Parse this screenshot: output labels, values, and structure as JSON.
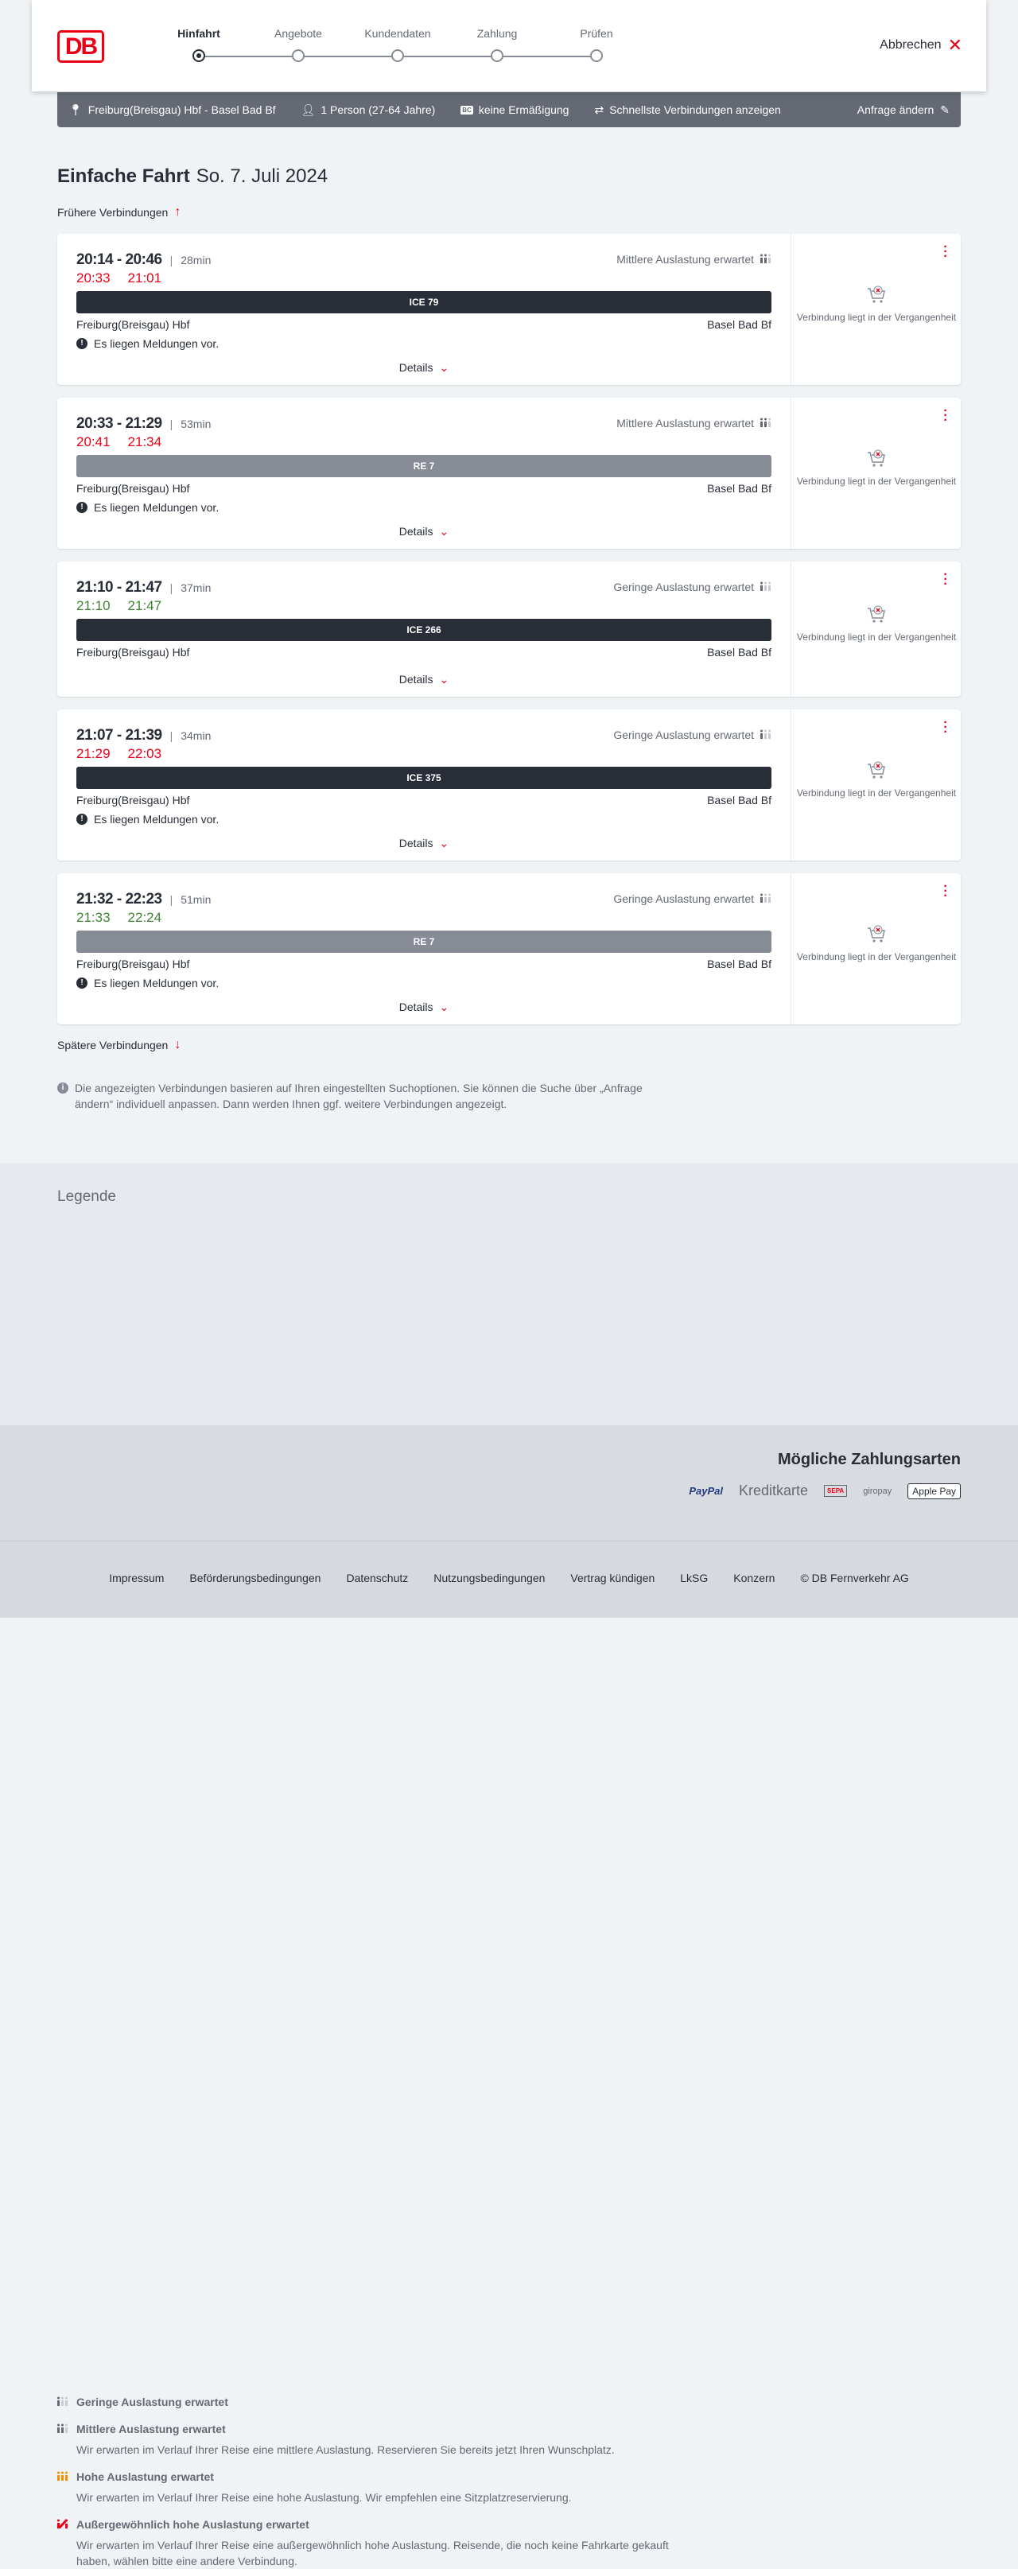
{
  "header": {
    "logo": "DB",
    "steps": [
      "Hinfahrt",
      "Angebote",
      "Kundendaten",
      "Zahlung",
      "Prüfen"
    ],
    "active_step": 0,
    "cancel": "Abbrechen"
  },
  "summary": {
    "route": "Freiburg(Breisgau) Hbf - Basel Bad Bf",
    "persons": "1 Person (27-64 Jahre)",
    "bc_badge": "BC",
    "discount": "keine Ermäßigung",
    "fastest": "Schnellste Verbindungen anzeigen",
    "change": "Anfrage ändern"
  },
  "page": {
    "title": "Einfache Fahrt",
    "date": "So. 7. Juli 2024",
    "earlier": "Frühere Verbindungen",
    "later": "Spätere Verbindungen",
    "info": "Die angezeigten Verbindungen basieren auf Ihren eingestellten Suchoptionen. Sie können die Suche über „Anfrage ändern“ individuell anpassen. Dann werden Ihnen ggf. weitere Verbindungen angezeigt."
  },
  "colors": {
    "delay": "#ec0016",
    "ontime": "#408335",
    "ice": "#282d37",
    "regional": "#878c96",
    "accent": "#ec0016"
  },
  "connections": [
    {
      "times": "20:14 - 20:46",
      "duration": "28min",
      "rt_dep": "20:33",
      "rt_arr": "21:01",
      "rt_status": "delay",
      "load": "Mittlere Auslastung erwartet",
      "load_level": 2,
      "train": "ICE 79",
      "train_type": "ice",
      "from": "Freiburg(Breisgau) Hbf",
      "to": "Basel Bad Bf",
      "message": "Es liegen Meldungen vor.",
      "details": "Details",
      "status": "Verbindung liegt in der Vergangenheit"
    },
    {
      "times": "20:33 - 21:29",
      "duration": "53min",
      "rt_dep": "20:41",
      "rt_arr": "21:34",
      "rt_status": "delay",
      "load": "Mittlere Auslastung erwartet",
      "load_level": 2,
      "train": "RE 7",
      "train_type": "regional",
      "from": "Freiburg(Breisgau) Hbf",
      "to": "Basel Bad Bf",
      "message": "Es liegen Meldungen vor.",
      "details": "Details",
      "status": "Verbindung liegt in der Vergangenheit"
    },
    {
      "times": "21:10 - 21:47",
      "duration": "37min",
      "rt_dep": "21:10",
      "rt_arr": "21:47",
      "rt_status": "ontime",
      "load": "Geringe Auslastung erwartet",
      "load_level": 1,
      "train": "ICE 266",
      "train_type": "ice",
      "from": "Freiburg(Breisgau) Hbf",
      "to": "Basel Bad Bf",
      "message": null,
      "details": "Details",
      "status": "Verbindung liegt in der Vergangenheit"
    },
    {
      "times": "21:07 - 21:39",
      "duration": "34min",
      "rt_dep": "21:29",
      "rt_arr": "22:03",
      "rt_status": "delay",
      "load": "Geringe Auslastung erwartet",
      "load_level": 1,
      "train": "ICE 375",
      "train_type": "ice",
      "from": "Freiburg(Breisgau) Hbf",
      "to": "Basel Bad Bf",
      "message": "Es liegen Meldungen vor.",
      "details": "Details",
      "status": "Verbindung liegt in der Vergangenheit"
    },
    {
      "times": "21:32 - 22:23",
      "duration": "51min",
      "rt_dep": "21:33",
      "rt_arr": "22:24",
      "rt_status": "ontime",
      "load": "Geringe Auslastung erwartet",
      "load_level": 1,
      "train": "RE 7",
      "train_type": "regional",
      "from": "Freiburg(Breisgau) Hbf",
      "to": "Basel Bad Bf",
      "message": "Es liegen Meldungen vor.",
      "details": "Details",
      "status": "Verbindung liegt in der Vergangenheit"
    }
  ],
  "legend": {
    "title": "Legende",
    "items": [
      {
        "title": "Geringe Auslastung erwartet",
        "text": "",
        "color": "#646973",
        "level": 1
      },
      {
        "title": "Mittlere Auslastung erwartet",
        "text": "Wir erwarten im Verlauf Ihrer Reise eine mittlere Auslastung. Reservieren Sie bereits jetzt Ihren Wunschplatz.",
        "color": "#646973",
        "level": 2
      },
      {
        "title": "Hohe Auslastung erwartet",
        "text": "Wir erwarten im Verlauf Ihrer Reise eine hohe Auslastung. Wir empfehlen eine Sitzplatzreservierung.",
        "color": "#f39200",
        "level": 3
      },
      {
        "title": "Außergewöhnlich hohe Auslastung erwartet",
        "text": "Wir erwarten im Verlauf Ihrer Reise eine außergewöhnlich hohe Auslastung. Reisende, die noch keine Fahrkarte gekauft haben, wählen bitte eine andere Verbindung.",
        "color": "#ec0016",
        "level": 4
      }
    ]
  },
  "payment": {
    "title": "Mögliche Zahlungsarten",
    "methods": [
      "PayPal",
      "Kreditkarte",
      "SEPA",
      "giropay",
      "Apple Pay"
    ]
  },
  "footer": {
    "links": [
      "Impressum",
      "Beförderungsbedingungen",
      "Datenschutz",
      "Nutzungsbedingungen",
      "Vertrag kündigen",
      "LkSG",
      "Konzern",
      "© DB Fernverkehr AG"
    ]
  }
}
